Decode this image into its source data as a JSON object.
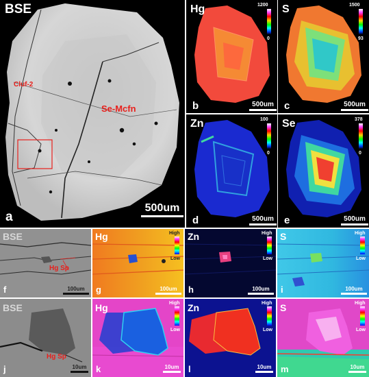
{
  "top": {
    "a": {
      "element": "BSE",
      "letter": "a",
      "scale": "500um",
      "labels": [
        "Cluf-2",
        "Se-Mcfn"
      ]
    },
    "b": {
      "element": "Hg",
      "letter": "b",
      "scale": "500um",
      "cmax": "1200",
      "cmin": "0"
    },
    "c": {
      "element": "S",
      "letter": "c",
      "scale": "500um",
      "cmax": "1500",
      "cmin": "93"
    },
    "d": {
      "element": "Zn",
      "letter": "d",
      "scale": "500um",
      "cmax": "100",
      "cmin": "0"
    },
    "e": {
      "element": "Se",
      "letter": "e",
      "scale": "500um",
      "cmax": "378",
      "cmin": "0"
    }
  },
  "row2": {
    "f": {
      "element": "BSE",
      "letter": "f",
      "scale": "100um",
      "label": "Hg  Sp"
    },
    "g": {
      "element": "Hg",
      "letter": "g",
      "scale": "100um",
      "high": "High",
      "low": "Low"
    },
    "h": {
      "element": "Zn",
      "letter": "h",
      "scale": "100um",
      "high": "High",
      "low": "Low"
    },
    "i": {
      "element": "S",
      "letter": "i",
      "scale": "100um",
      "high": "High",
      "low": "Low"
    }
  },
  "row3": {
    "j": {
      "element": "BSE",
      "letter": "j",
      "scale": "10um",
      "label": "Hg  Sp"
    },
    "k": {
      "element": "Hg",
      "letter": "k",
      "scale": "10um",
      "high": "High",
      "low": "Low"
    },
    "l": {
      "element": "Zn",
      "letter": "l",
      "scale": "10um",
      "high": "High",
      "low": "Low"
    },
    "m": {
      "element": "S",
      "letter": "m",
      "scale": "10um",
      "high": "High",
      "low": "Low"
    }
  }
}
